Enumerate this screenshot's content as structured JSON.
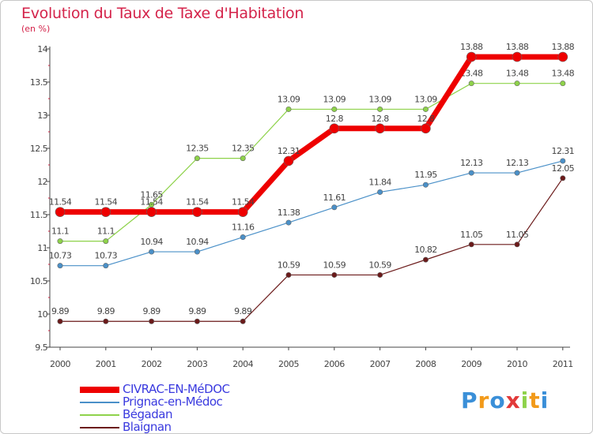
{
  "chart_data": {
    "type": "line",
    "title": "Evolution du Taux de Taxe d'Habitation",
    "subtitle": "(en %)",
    "xlabel": "",
    "ylabel": "",
    "categories": [
      "2000",
      "2001",
      "2002",
      "2003",
      "2004",
      "2005",
      "2006",
      "2007",
      "2008",
      "2009",
      "2010",
      "2011"
    ],
    "ylim": [
      9.5,
      14
    ],
    "yticks": [
      "9.5",
      "10",
      "10.5",
      "11",
      "11.5",
      "12",
      "12.5",
      "13",
      "13.5",
      "14"
    ],
    "series": [
      {
        "name": "Blaignan",
        "color": "#6b1a1a",
        "width": 1.2,
        "values": [
          9.89,
          9.89,
          9.89,
          9.89,
          9.89,
          10.59,
          10.59,
          10.59,
          10.82,
          11.05,
          11.05,
          12.05
        ],
        "labels": [
          "9.89",
          "9.89",
          "9.89",
          "9.89",
          "9.89",
          "10.59",
          "10.59",
          "10.59",
          "10.82",
          "11.05",
          "11.05",
          "12.05"
        ]
      },
      {
        "name": "Prignac-en-Médoc",
        "color": "#4a90c8",
        "width": 1.2,
        "values": [
          10.73,
          10.73,
          10.94,
          10.94,
          11.16,
          11.38,
          11.61,
          11.84,
          11.95,
          12.13,
          12.13,
          12.31
        ],
        "labels": [
          "10.73",
          "10.73",
          "10.94",
          "10.94",
          "11.16",
          "11.38",
          "11.61",
          "11.84",
          "11.95",
          "12.13",
          "12.13",
          "12.31"
        ]
      },
      {
        "name": "Bégadan",
        "color": "#8ed24a",
        "width": 1.2,
        "values": [
          11.1,
          11.1,
          11.65,
          12.35,
          12.35,
          13.09,
          13.09,
          13.09,
          13.09,
          13.48,
          13.48,
          13.48
        ],
        "labels": [
          "11.1",
          "11.1",
          "11.65",
          "12.35",
          "12.35",
          "13.09",
          "13.09",
          "13.09",
          "13.09",
          "13.48",
          "13.48",
          "13.48"
        ]
      },
      {
        "name": "CIVRAC-EN-MéDOC",
        "color": "#ee0000",
        "width": 7,
        "values": [
          11.54,
          11.54,
          11.54,
          11.54,
          11.54,
          12.31,
          12.8,
          12.8,
          12.8,
          13.88,
          13.88,
          13.88
        ],
        "labels": [
          "11.54",
          "11.54",
          "11.54",
          "11.54",
          "11.54",
          "12.31",
          "12.8",
          "12.8",
          "12.8",
          "13.88",
          "13.88",
          "13.88"
        ]
      }
    ],
    "legend_order": [
      "CIVRAC-EN-MéDOC",
      "Prignac-en-Médoc",
      "Bégadan",
      "Blaignan"
    ],
    "grid": false,
    "legend": "bottom-left"
  },
  "brand": {
    "letters": [
      "P",
      "r",
      "o",
      "x",
      "i",
      "t",
      "i"
    ],
    "colors": [
      "#3a8fd8",
      "#f29a1a",
      "#3a8fd8",
      "#e23a3a",
      "#8ed24a",
      "#f29a1a",
      "#3a8fd8"
    ]
  }
}
